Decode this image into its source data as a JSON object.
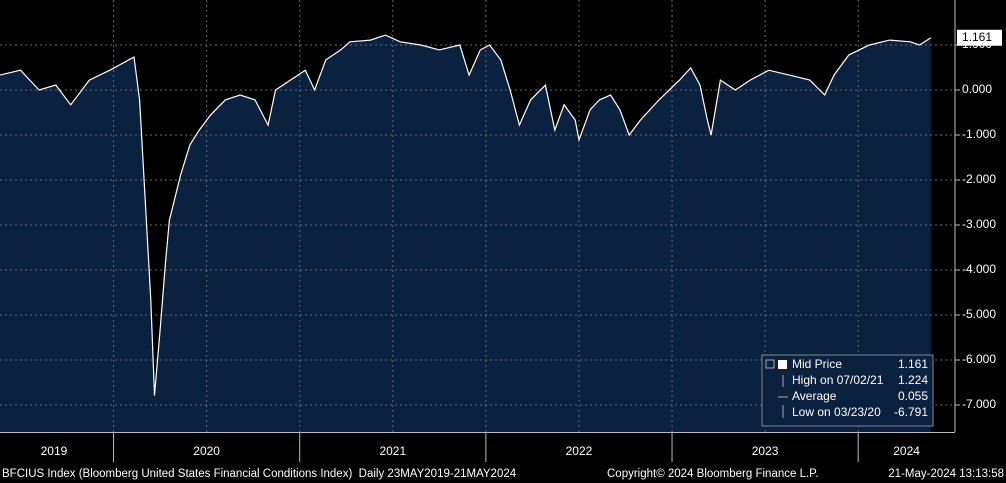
{
  "chart_data": {
    "type": "area",
    "x": [
      2019.39,
      2019.5,
      2019.6,
      2019.69,
      2019.77,
      2019.87,
      2019.98,
      2020.06,
      2020.11,
      2020.14,
      2020.17,
      2020.2,
      2020.22,
      2020.25,
      2020.28,
      2020.3,
      2020.36,
      2020.41,
      2020.46,
      2020.52,
      2020.6,
      2020.68,
      2020.76,
      2020.83,
      2020.87,
      2020.95,
      2021.03,
      2021.08,
      2021.14,
      2021.22,
      2021.27,
      2021.38,
      2021.46,
      2021.54,
      2021.65,
      2021.75,
      2021.86,
      2021.91,
      2021.97,
      2022.02,
      2022.08,
      2022.13,
      2022.18,
      2022.24,
      2022.32,
      2022.37,
      2022.42,
      2022.48,
      2022.5,
      2022.56,
      2022.61,
      2022.67,
      2022.72,
      2022.77,
      2022.83,
      2022.93,
      2023.04,
      2023.1,
      2023.15,
      2023.19,
      2023.21,
      2023.26,
      2023.34,
      2023.42,
      2023.52,
      2023.63,
      2023.74,
      2023.82,
      2023.87,
      2023.95,
      2024.06,
      2024.17,
      2024.28,
      2024.33,
      2024.39
    ],
    "series": [
      {
        "name": "Mid Price",
        "color": "#ffffff",
        "fill": "#0b2140",
        "values": [
          0.33,
          0.44,
          0,
          0.11,
          -0.33,
          0.22,
          0.44,
          0.62,
          0.73,
          -0.22,
          -2.44,
          -4.67,
          -6.79,
          -5.33,
          -3.78,
          -2.89,
          -1.89,
          -1.22,
          -0.89,
          -0.56,
          -0.22,
          -0.11,
          -0.22,
          -0.78,
          0,
          0.22,
          0.44,
          0,
          0.67,
          0.89,
          1.07,
          1.11,
          1.22,
          1.07,
          1.0,
          0.89,
          1.0,
          0.33,
          0.89,
          1.0,
          0.67,
          0,
          -0.78,
          -0.22,
          0.11,
          -0.89,
          -0.33,
          -0.67,
          -1.11,
          -0.44,
          -0.22,
          -0.11,
          -0.44,
          -1.0,
          -0.67,
          -0.22,
          0.22,
          0.49,
          0.11,
          -0.67,
          -1.0,
          0.22,
          0,
          0.22,
          0.44,
          0.33,
          0.22,
          -0.11,
          0.33,
          0.78,
          1.0,
          1.11,
          1.07,
          1.0,
          1.16
        ]
      }
    ],
    "last_value": 1.161,
    "stats": [
      {
        "label": "High on 07/02/21",
        "value": 1.224
      },
      {
        "label": "Average",
        "value": 0.055
      },
      {
        "label": "Low on 03/23/20",
        "value": -6.791
      }
    ],
    "xlim": [
      2019.39,
      2024.52
    ],
    "xticks": [
      {
        "value": 2019.68,
        "label": "2019"
      },
      {
        "value": 2020.5,
        "label": "2020"
      },
      {
        "value": 2021.5,
        "label": "2021"
      },
      {
        "value": 2022.5,
        "label": "2022"
      },
      {
        "value": 2023.5,
        "label": "2023"
      },
      {
        "value": 2024.26,
        "label": "2024"
      }
    ],
    "year_separators": [
      2020,
      2021,
      2022,
      2023,
      2024
    ],
    "xgrid": [
      2020,
      2020.5,
      2021,
      2021.5,
      2022,
      2022.5,
      2023,
      2023.5,
      2024
    ],
    "ylim": [
      -7.6,
      2.0
    ],
    "yticks": [
      {
        "value": 1,
        "label": "1.000"
      },
      {
        "value": 0,
        "label": "0.000"
      },
      {
        "value": -1,
        "label": "-1.000"
      },
      {
        "value": -2,
        "label": "-2.000"
      },
      {
        "value": -3,
        "label": "-3.000"
      },
      {
        "value": -4,
        "label": "-4.000"
      },
      {
        "value": -5,
        "label": "-5.000"
      },
      {
        "value": -6,
        "label": "-6.000"
      },
      {
        "value": -7,
        "label": "-7.000"
      }
    ],
    "grid": true,
    "footer": {
      "left": "BFCIUS Index (Bloomberg United States Financial Conditions Index)  Daily 23MAY2019-21MAY2024",
      "middle": "Copyright© 2024 Bloomberg Finance L.P.",
      "right": "21-May-2024 13:13:58"
    }
  }
}
